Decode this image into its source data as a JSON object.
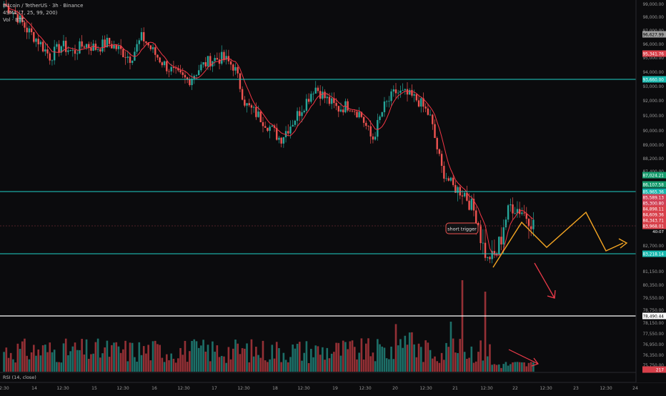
{
  "legend": {
    "title": "Bitcoin / TetherUS · 3h · Binance",
    "ma": "4SMA (7, 25, 99, 200)",
    "vol": "Vol · BTC"
  },
  "rsi_label": "RSI (14, close)",
  "colors": {
    "background": "#0b0b0d",
    "up": "#26a69a",
    "down": "#ef5350",
    "ma": "#f23645",
    "cyan_level": "#1fd1c8",
    "white_level": "#ffffff",
    "projection": "#f5a623",
    "arrow": "#ef3b4a"
  },
  "annotation": {
    "text": "short trigger"
  },
  "chart_data": {
    "type": "candlestick",
    "price_axis": {
      "labels": [
        "99,000.00",
        "98,000.00",
        "97,000.00",
        "96,000.00",
        "95,000.00",
        "94,000.00",
        "93,000.00",
        "92,000.00",
        "91,000.00",
        "90,000.00",
        "89,000.00",
        "88,200.00",
        "87,400.00",
        "82,700.00",
        "81,150.00",
        "80,350.00",
        "79,550.00",
        "78,750.00",
        "78,150.00",
        "77,550.00",
        "76,950.00",
        "76,350.00",
        "75,750.00"
      ],
      "badges": [
        {
          "value": "96,627.99",
          "color": "#9e9e9e"
        },
        {
          "value": "95,341.76",
          "color": "#d8404a"
        },
        {
          "value": "93,660.00",
          "color": "#17b8ae"
        },
        {
          "value": "87,024.21",
          "color": "#179c6e"
        },
        {
          "value": "86,107.58",
          "color": "#179c6e"
        },
        {
          "value": "85,965.36",
          "color": "#17b8ae"
        },
        {
          "value": "85,589.13",
          "color": "#cf3f55"
        },
        {
          "value": "85,300.80",
          "color": "#cf3f55"
        },
        {
          "value": "84,898.11",
          "color": "#d8404a"
        },
        {
          "value": "84,609.36",
          "color": "#d8404a"
        },
        {
          "value": "84,343.71",
          "color": "#d8404a"
        },
        {
          "value": "83,968.01",
          "color": "#d8404a"
        },
        {
          "value": "83,218.14",
          "color": "#17b8ae"
        },
        {
          "value": "78,490.44",
          "color": "#ffffff"
        },
        {
          "value": "217",
          "color": "#d8404a"
        }
      ],
      "countdown": "40:07"
    },
    "time_axis": [
      "12:30",
      "14",
      "12:30",
      "15",
      "12:30",
      "16",
      "12:30",
      "17",
      "12:30",
      "18",
      "12:30",
      "19",
      "12:30",
      "20",
      "12:30",
      "21",
      "12:30",
      "22",
      "12:30",
      "23",
      "12:30",
      "24"
    ],
    "horizontal_levels": [
      {
        "price": 93660,
        "color": "cyan"
      },
      {
        "price": 85965,
        "color": "cyan"
      },
      {
        "price": 83218,
        "color": "cyan"
      },
      {
        "price": 78490,
        "color": "white"
      }
    ],
    "series": [
      {
        "name": "Bitcoin / TetherUS",
        "price_path": [
          99000,
          98300,
          97200,
          96400,
          95300,
          96100,
          95600,
          96200,
          95900,
          96300,
          95800,
          95200,
          96700,
          95600,
          94700,
          94000,
          93600,
          94500,
          95100,
          95200,
          94600,
          91900,
          91200,
          90400,
          89500,
          90600,
          91800,
          93200,
          92300,
          91600,
          91900,
          91200,
          89400,
          91700,
          92800,
          92600,
          92200,
          91100,
          87600,
          86300,
          85900,
          84700,
          82600,
          83400,
          85200,
          84900,
          84200
        ]
      }
    ]
  }
}
